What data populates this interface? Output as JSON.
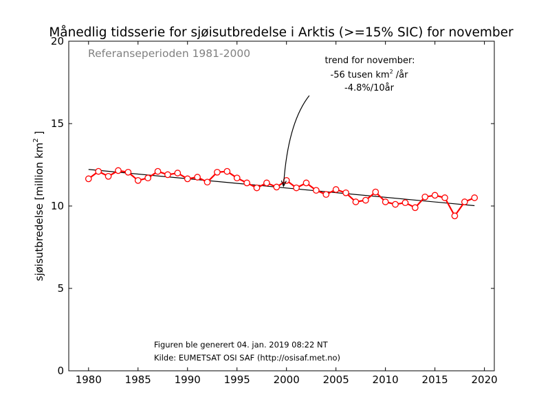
{
  "chart_data": {
    "type": "line",
    "title": "Månedlig tidsserie for sjøisutbredelse i Arktis (>=15% SIC) for november",
    "ylabel_main": "sjøisutbredelse [million km",
    "ylabel_sup": "2",
    "ylabel_end": " ]",
    "xlabel": "",
    "xlim": [
      1978,
      2021
    ],
    "ylim": [
      0,
      20
    ],
    "xticks": [
      1980,
      1985,
      1990,
      1995,
      2000,
      2005,
      2010,
      2015,
      2020
    ],
    "yticks": [
      0,
      5,
      10,
      15,
      20
    ],
    "reference_period_text": "Referanseperioden 1981-2000",
    "annotation": {
      "line1": "trend for november:",
      "line2_main": "-56 tusen km",
      "line2_sup": "2",
      "line2_end": " /år",
      "line3": "-4.8%/10år",
      "arrow_target": {
        "x": 1999.7,
        "y": 11.2
      },
      "arrow_origin": {
        "x": 2002.3,
        "y": 16.7
      }
    },
    "footer_line1": "Figuren ble generert 04. jan. 2019 08:22 NT",
    "footer_line2": "Kilde: EUMETSAT OSI SAF (http://osisaf.met.no)",
    "series": [
      {
        "color": "#ff0000",
        "x": [
          1980,
          1981,
          1982,
          1983,
          1984,
          1985,
          1986,
          1987,
          1988,
          1989,
          1990,
          1991,
          1992,
          1993,
          1994,
          1995,
          1996,
          1997,
          1998,
          1999,
          2000,
          2001,
          2002,
          2003,
          2004,
          2005,
          2006,
          2007,
          2008,
          2009,
          2010,
          2011,
          2012,
          2013,
          2014,
          2015,
          2016,
          2017,
          2018,
          2019
        ],
        "y": [
          11.65,
          12.1,
          11.8,
          12.15,
          12.05,
          11.55,
          11.7,
          12.1,
          11.9,
          12.0,
          11.65,
          11.75,
          11.45,
          12.05,
          12.1,
          11.7,
          11.4,
          11.1,
          11.4,
          11.15,
          11.55,
          11.1,
          11.4,
          10.95,
          10.7,
          11.0,
          10.8,
          10.25,
          10.35,
          10.85,
          10.25,
          10.1,
          10.2,
          9.9,
          10.55,
          10.65,
          10.5,
          9.4,
          10.25,
          10.5
        ]
      }
    ],
    "trend": {
      "x": [
        1980,
        2019
      ],
      "y": [
        12.22,
        10.02
      ],
      "color": "#000000"
    }
  }
}
